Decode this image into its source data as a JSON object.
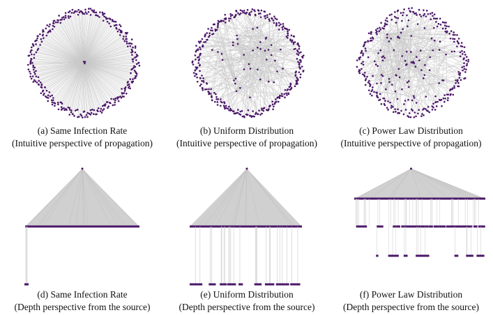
{
  "colors": {
    "node": "#4a1768",
    "edge": "#c9c9c9",
    "fill": "#d0d0d0",
    "text": "#111111"
  },
  "figure": {
    "panels": [
      {
        "id": "a",
        "view": "radial",
        "dist": "same",
        "caption_line1": "(a) Same Infection Rate",
        "caption_line2": "(Intuitive perspective of propagation)"
      },
      {
        "id": "b",
        "view": "radial",
        "dist": "uniform",
        "caption_line1": "(b) Uniform Distribution",
        "caption_line2": "(Intuitive perspective of propagation)"
      },
      {
        "id": "c",
        "view": "radial",
        "dist": "powerlaw",
        "caption_line1": "(c) Power Law Distribution",
        "caption_line2": "(Intuitive perspective of propagation)"
      },
      {
        "id": "d",
        "view": "depth",
        "dist": "same",
        "caption_line1": "(d) Same Infection Rate",
        "caption_line2": "(Depth perspective from the source)"
      },
      {
        "id": "e",
        "view": "depth",
        "dist": "uniform",
        "caption_line1": "(e) Uniform Distribution",
        "caption_line2": "(Depth perspective from the source)"
      },
      {
        "id": "f",
        "view": "depth",
        "dist": "powerlaw",
        "caption_line1": "(f) Power Law Distribution",
        "caption_line2": "(Depth perspective from the source)"
      }
    ]
  }
}
